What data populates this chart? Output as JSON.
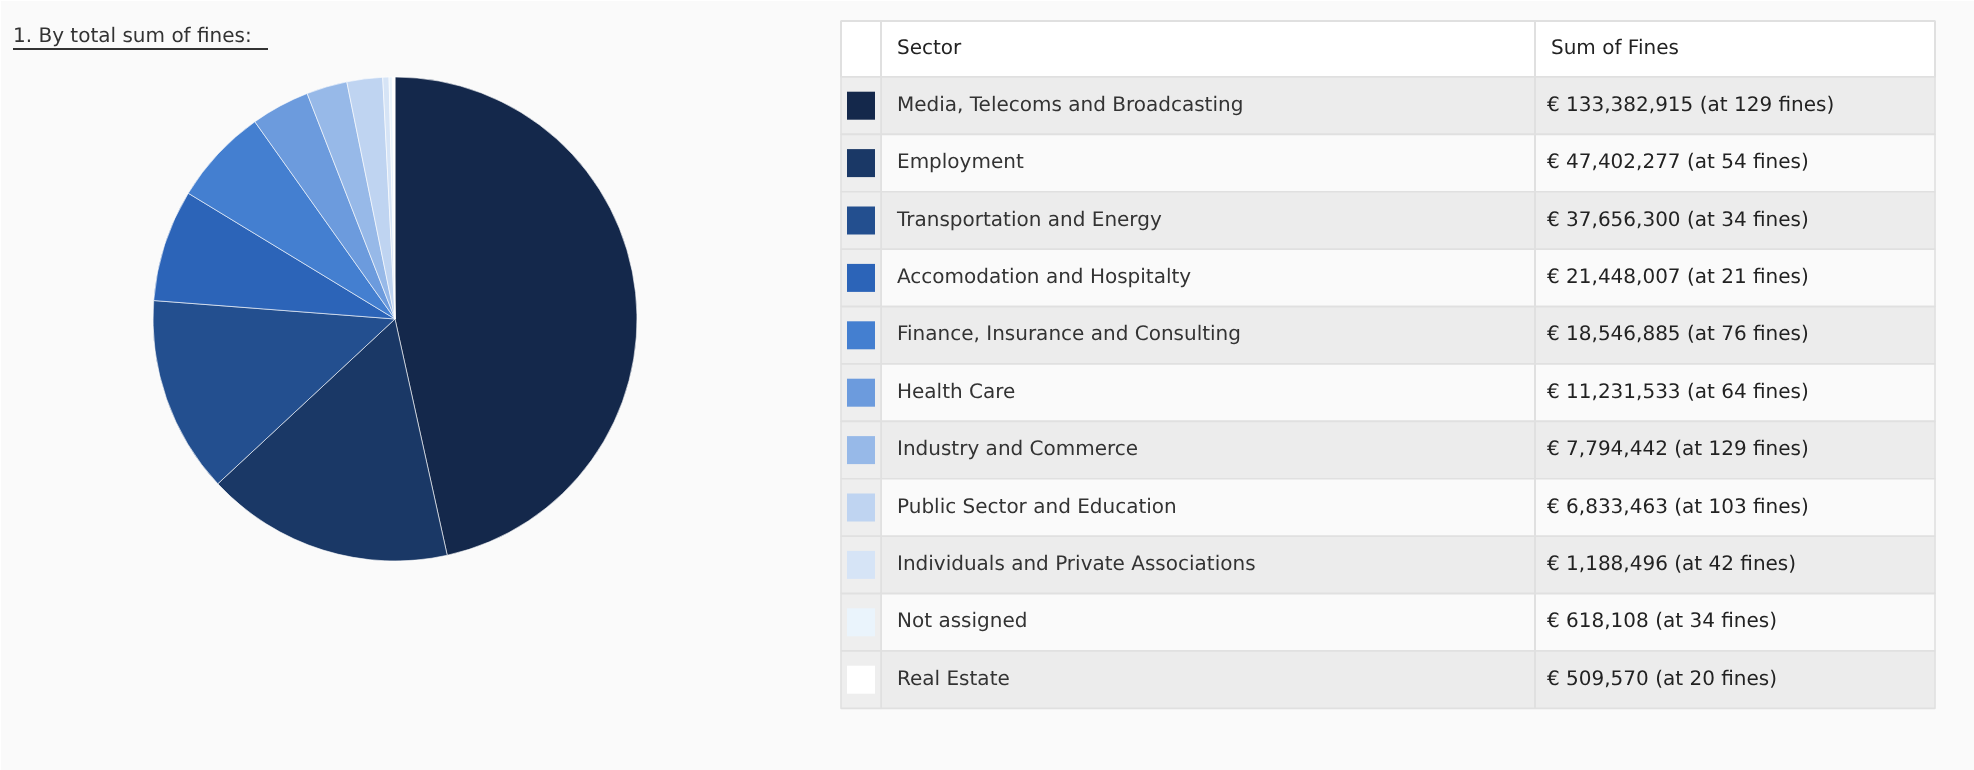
{
  "chart_data": {
    "type": "pie",
    "title": "1. By total sum of fines:",
    "legend_title": "Sector",
    "annotations": [
      "Sum of Fines"
    ],
    "legend": "right",
    "categories": [
      "Media, Telecoms and Broadcasting",
      "Employment",
      "Transportation and Energy",
      "Accomodation and Hospitalty",
      "Finance, Insurance and Consulting",
      "Health Care",
      "Industry and Commerce",
      "Public Sector and Education",
      "Individuals and Private Associations",
      "Not assigned",
      "Real Estate"
    ],
    "values": [
      133382915,
      47402277,
      37656300,
      21448007,
      18546885,
      11231533,
      7794442,
      6833463,
      1188496,
      618108,
      509570
    ],
    "value_labels": [
      "€ 133,382,915 (at 129 fines)",
      "€ 47,402,277 (at 54 fines)",
      "€ 37,656,300 (at 34 fines)",
      "€ 21,448,007 (at 21 fines)",
      "€ 18,546,885 (at 76 fines)",
      "€ 11,231,533 (at 64 fines)",
      "€ 7,794,442 (at 129 fines)",
      "€ 6,833,463 (at 103 fines)",
      "€ 1,188,496 (at 42 fines)",
      "€ 618,108 (at 34 fines)",
      "€ 509,570 (at 20 fines)"
    ],
    "colors": [
      "#14284b",
      "#1a3866",
      "#234f8f",
      "#2c64b8",
      "#447fd0",
      "#6c9bdd",
      "#97b9e8",
      "#bfd4f1",
      "#d6e4f6",
      "#eaf4fc",
      "#ffffff"
    ]
  }
}
